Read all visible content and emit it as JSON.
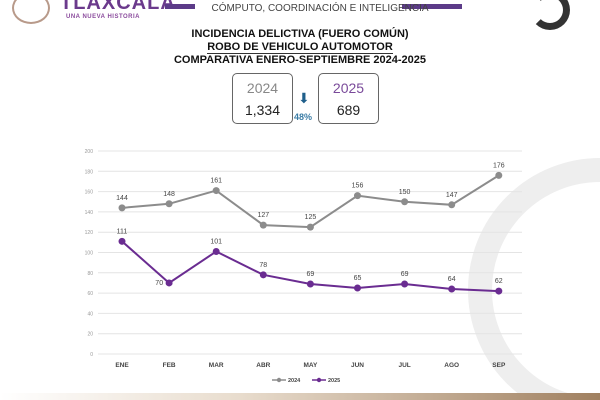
{
  "header": {
    "logo_text": "TLAXCALA",
    "logo_subtitle": "UNA NUEVA HISTORIA",
    "department": "CÓMPUTO, COORDINACIÓN E INTELIGENCIA"
  },
  "titles": [
    "INCIDENCIA DELICTIVA (FUERO COMÚN)",
    "ROBO DE VEHICULO AUTOMOTOR",
    "COMPARATIVA ENERO-SEPTIEMBRE 2024-2025"
  ],
  "summary": {
    "year_a": "2024",
    "total_a": "1,334",
    "year_b": "2025",
    "total_b": "689",
    "change": "48%",
    "change_icon": "arrow-down-icon"
  },
  "chart_data": {
    "type": "line",
    "categories": [
      "ENE",
      "FEB",
      "MAR",
      "ABR",
      "MAY",
      "JUN",
      "JUL",
      "AGO",
      "SEP"
    ],
    "series": [
      {
        "name": "2024",
        "color": "#8c8c8c",
        "values": [
          144,
          148,
          161,
          127,
          125,
          156,
          150,
          147,
          176
        ]
      },
      {
        "name": "2025",
        "color": "#6a2c91",
        "values": [
          111,
          70,
          101,
          78,
          69,
          65,
          69,
          64,
          62
        ]
      }
    ],
    "ylim": [
      0,
      200
    ],
    "yticks": [
      0,
      20,
      40,
      60,
      80,
      100,
      120,
      140,
      160,
      180,
      200
    ],
    "grid": true,
    "legend": "bottom"
  }
}
